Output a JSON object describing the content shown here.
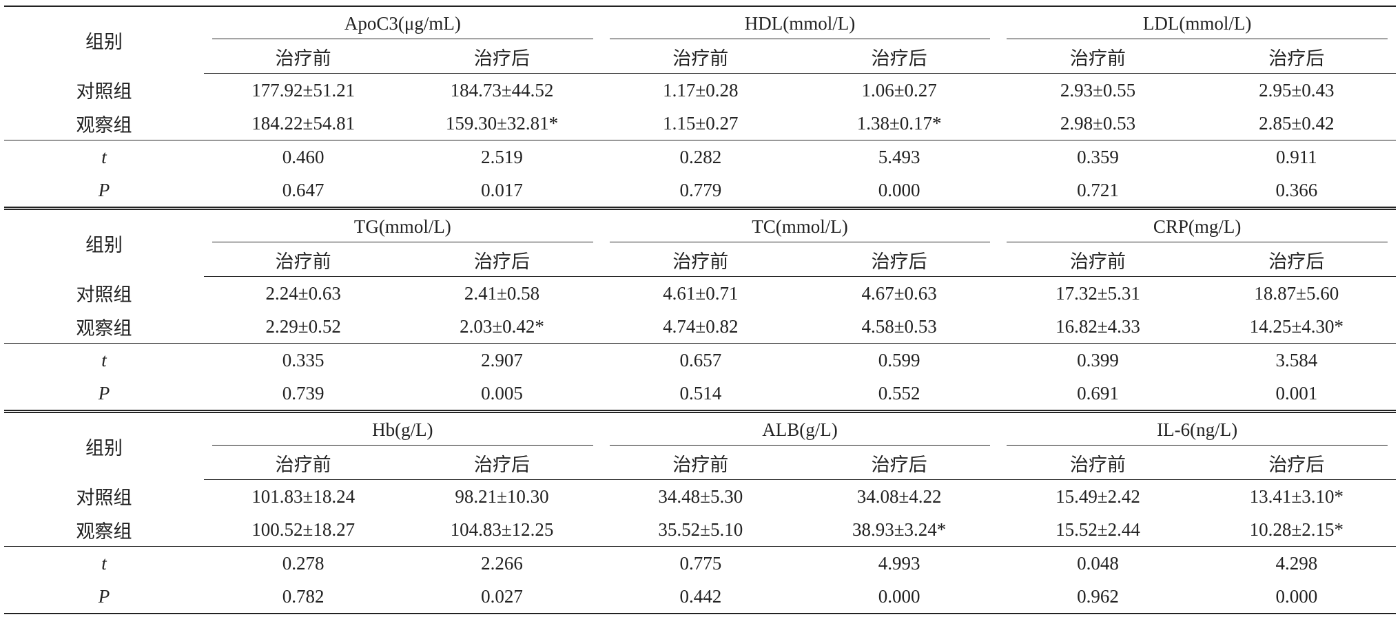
{
  "blocks": [
    {
      "group_label": "组别",
      "metrics": [
        "ApoC3(μg/mL)",
        "HDL(mmol/L)",
        "LDL(mmol/L)"
      ],
      "subheaders": [
        "治疗前",
        "治疗后",
        "治疗前",
        "治疗后",
        "治疗前",
        "治疗后"
      ],
      "rows": [
        [
          "对照组",
          "177.92±51.21",
          "184.73±44.52",
          "1.17±0.28",
          "1.06±0.27",
          "2.93±0.55",
          "2.95±0.43"
        ],
        [
          "观察组",
          "184.22±54.81",
          "159.30±32.81*",
          "1.15±0.27",
          "1.38±0.17*",
          "2.98±0.53",
          "2.85±0.42"
        ],
        [
          "t",
          "0.460",
          "2.519",
          "0.282",
          "5.493",
          "0.359",
          "0.911"
        ],
        [
          "P",
          "0.647",
          "0.017",
          "0.779",
          "0.000",
          "0.721",
          "0.366"
        ]
      ]
    },
    {
      "group_label": "组别",
      "metrics": [
        "TG(mmol/L)",
        "TC(mmol/L)",
        "CRP(mg/L)"
      ],
      "subheaders": [
        "治疗前",
        "治疗后",
        "治疗前",
        "治疗后",
        "治疗前",
        "治疗后"
      ],
      "rows": [
        [
          "对照组",
          "2.24±0.63",
          "2.41±0.58",
          "4.61±0.71",
          "4.67±0.63",
          "17.32±5.31",
          "18.87±5.60"
        ],
        [
          "观察组",
          "2.29±0.52",
          "2.03±0.42*",
          "4.74±0.82",
          "4.58±0.53",
          "16.82±4.33",
          "14.25±4.30*"
        ],
        [
          "t",
          "0.335",
          "2.907",
          "0.657",
          "0.599",
          "0.399",
          "3.584"
        ],
        [
          "P",
          "0.739",
          "0.005",
          "0.514",
          "0.552",
          "0.691",
          "0.001"
        ]
      ]
    },
    {
      "group_label": "组别",
      "metrics": [
        "Hb(g/L)",
        "ALB(g/L)",
        "IL-6(ng/L)"
      ],
      "subheaders": [
        "治疗前",
        "治疗后",
        "治疗前",
        "治疗后",
        "治疗前",
        "治疗后"
      ],
      "rows": [
        [
          "对照组",
          "101.83±18.24",
          "98.21±10.30",
          "34.48±5.30",
          "34.08±4.22",
          "15.49±2.42",
          "13.41±3.10*"
        ],
        [
          "观察组",
          "100.52±18.27",
          "104.83±12.25",
          "35.52±5.10",
          "38.93±3.24*",
          "15.52±2.44",
          "10.28±2.15*"
        ],
        [
          "t",
          "0.278",
          "2.266",
          "0.775",
          "4.993",
          "0.048",
          "4.298"
        ],
        [
          "P",
          "0.782",
          "0.027",
          "0.442",
          "0.000",
          "0.962",
          "0.000"
        ]
      ]
    }
  ]
}
